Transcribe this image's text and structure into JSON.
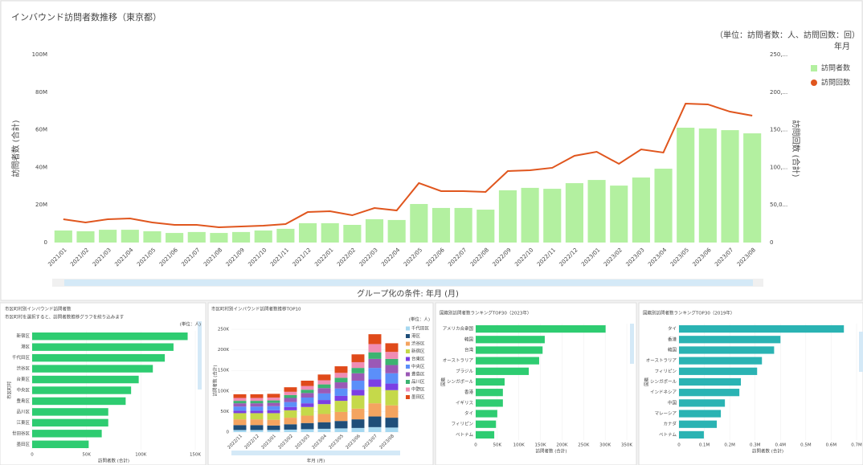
{
  "chart_data": [
    {
      "type": "combo",
      "title": "インバウンド訪問者数推移（東京都）",
      "unit_note": "（単位：訪問者数：人、訪問回数：回）",
      "legend_title": "年月",
      "group_label": "グループ化の条件: 年月 (月)",
      "ylabel": "訪問者数 (合計)",
      "y2label": "訪問回数 (合計)",
      "categories": [
        "2021/01",
        "2021/02",
        "2021/03",
        "2021/04",
        "2021/05",
        "2021/06",
        "2021/07",
        "2021/08",
        "2021/09",
        "2021/10",
        "2021/11",
        "2021/12",
        "2022/01",
        "2022/02",
        "2022/03",
        "2022/04",
        "2022/05",
        "2022/06",
        "2022/07",
        "2022/08",
        "2022/09",
        "2022/10",
        "2022/11",
        "2022/12",
        "2023/01",
        "2023/02",
        "2023/03",
        "2023/04",
        "2023/05",
        "2023/06",
        "2023/07",
        "2023/08"
      ],
      "series": [
        {
          "name": "訪問者数",
          "color": "#b3f0a0",
          "values": [
            6400000,
            6000000,
            6800000,
            6800000,
            6000000,
            5100000,
            5600000,
            5100000,
            5600000,
            6400000,
            7300000,
            10300000,
            10300000,
            9400000,
            12400000,
            12000000,
            20500000,
            18400000,
            18400000,
            17500000,
            27800000,
            29100000,
            28600000,
            31600000,
            33300000,
            30300000,
            34600000,
            39300000,
            61100000,
            60700000,
            59800000,
            58100000
          ]
        },
        {
          "name": "訪問回数",
          "color": "#e0561e",
          "axis": "y2",
          "values": [
            31000,
            26700,
            31000,
            32000,
            26700,
            23500,
            23500,
            20300,
            21400,
            22400,
            24600,
            40600,
            41700,
            36300,
            45900,
            42700,
            79100,
            68400,
            68400,
            67300,
            95100,
            96200,
            99400,
            115400,
            120700,
            104700,
            123900,
            119700,
            184800,
            183800,
            174100,
            168800
          ]
        }
      ],
      "ylim": [
        0,
        100000000
      ],
      "yticks": [
        0,
        {
          "value": 20000000,
          "label": "20M"
        },
        {
          "value": 40000000,
          "label": "40M"
        },
        {
          "value": 60000000,
          "label": "60M"
        },
        {
          "value": 80000000,
          "label": "80M"
        },
        {
          "value": 100000000,
          "label": "100M"
        }
      ],
      "y2lim": [
        0,
        250000
      ],
      "y2ticks": [
        0,
        {
          "value": 50000,
          "label": "50,0..."
        },
        {
          "value": 100000,
          "label": "100,..."
        },
        {
          "value": 150000,
          "label": "150,..."
        },
        {
          "value": 200000,
          "label": "200,..."
        },
        {
          "value": 250000,
          "label": "250,..."
        }
      ],
      "grid": false
    },
    {
      "type": "hbar",
      "title": "市区町村別インバウンド訪問者数",
      "subtitle": "市区町村を選択すると、訪問者数推移グラフを絞り込みます",
      "unit_note": "(単位：人)",
      "xlabel": "訪問者数 (合計)",
      "ylabel": "市区町村",
      "color": "#2ecc71",
      "categories": [
        "新宿区",
        "港区",
        "千代田区",
        "渋谷区",
        "台東区",
        "中央区",
        "豊島区",
        "品川区",
        "江東区",
        "世田谷区",
        "墨田区"
      ],
      "values": [
        143000,
        130000,
        122000,
        111000,
        98000,
        91000,
        86000,
        70000,
        70000,
        64000,
        52000
      ],
      "xlim": [
        0,
        150000
      ],
      "xticks": [
        0,
        {
          "value": 50000,
          "label": "50K"
        },
        {
          "value": 100000,
          "label": "100K"
        },
        {
          "value": 150000,
          "label": "150K"
        }
      ]
    },
    {
      "type": "stacked_bar",
      "title": "市区町村別インバウンド訪問者数推移TOP10",
      "unit_note": "(単位：人)",
      "xlabel": "年月 (月)",
      "ylabel": "訪問者数 (合計)",
      "categories": [
        "2022/11",
        "2022/12",
        "2023/01",
        "2023/02",
        "2023/03",
        "2023/04",
        "2023/05",
        "2023/06",
        "2023/07",
        "2023/08"
      ],
      "series": [
        {
          "name": "千代田区",
          "color": "#a6d8f0",
          "values": [
            5000,
            5000,
            5000,
            6000,
            7000,
            8000,
            9000,
            10000,
            12000,
            11000
          ]
        },
        {
          "name": "港区",
          "color": "#1f4e79",
          "values": [
            12000,
            12000,
            11000,
            13000,
            15000,
            16000,
            18000,
            21000,
            26000,
            24000
          ]
        },
        {
          "name": "渋谷区",
          "color": "#f4a460",
          "values": [
            14000,
            14000,
            14000,
            16000,
            18000,
            20000,
            22000,
            26000,
            32000,
            30000
          ]
        },
        {
          "name": "新宿区",
          "color": "#c5d94a",
          "values": [
            15000,
            15000,
            16000,
            18000,
            21000,
            24000,
            27000,
            32000,
            40000,
            37000
          ]
        },
        {
          "name": "台東区",
          "color": "#7b3fe4",
          "values": [
            6000,
            6000,
            7000,
            8000,
            9000,
            10000,
            12000,
            14000,
            18000,
            16000
          ]
        },
        {
          "name": "中央区",
          "color": "#5b8ff9",
          "values": [
            10000,
            10000,
            10000,
            12000,
            14000,
            16000,
            18000,
            22000,
            28000,
            25000
          ]
        },
        {
          "name": "豊島区",
          "color": "#9b59b6",
          "values": [
            8000,
            8000,
            8000,
            10000,
            11000,
            13000,
            15000,
            18000,
            22000,
            20000
          ]
        },
        {
          "name": "品川区",
          "color": "#3cb371",
          "values": [
            6000,
            6000,
            6000,
            7000,
            8000,
            9000,
            11000,
            13000,
            16000,
            15000
          ]
        },
        {
          "name": "中野区",
          "color": "#f08cb4",
          "values": [
            7000,
            7000,
            7000,
            8000,
            9000,
            10000,
            12000,
            14000,
            20000,
            17000
          ]
        },
        {
          "name": "墨田区",
          "color": "#e04a1a",
          "values": [
            9000,
            9000,
            9000,
            11000,
            13000,
            14000,
            16000,
            19000,
            24000,
            21000
          ]
        }
      ],
      "ylim": [
        0,
        250000
      ],
      "yticks": [
        0,
        {
          "value": 50000,
          "label": "50K"
        },
        {
          "value": 100000,
          "label": "100K"
        },
        {
          "value": 150000,
          "label": "150K"
        },
        {
          "value": 200000,
          "label": "200K"
        },
        {
          "value": 250000,
          "label": "250K"
        }
      ]
    },
    {
      "type": "hbar",
      "title": "国籍別訪問者数ランキングTOP30（2023年）",
      "xlabel": "訪問者数 (合計)",
      "ylabel": "国籍",
      "color": "#2ecc71",
      "categories": [
        "アメリカ合衆国",
        "韓国",
        "台湾",
        "オーストラリア",
        "ブラジル",
        "シンガポール",
        "香港",
        "イギリス",
        "タイ",
        "フィリピン",
        "ベトナム"
      ],
      "values": [
        301000,
        160000,
        155000,
        147000,
        123000,
        67000,
        63000,
        63000,
        50000,
        47000,
        43000
      ],
      "xlim": [
        0,
        350000
      ],
      "xticks": [
        0,
        {
          "value": 50000,
          "label": "50K"
        },
        {
          "value": 100000,
          "label": "100K"
        },
        {
          "value": 150000,
          "label": "150K"
        },
        {
          "value": 200000,
          "label": "200K"
        },
        {
          "value": 250000,
          "label": "250K"
        },
        {
          "value": 300000,
          "label": "300K"
        },
        {
          "value": 350000,
          "label": "350K"
        }
      ]
    },
    {
      "type": "hbar",
      "title": "国籍別訪問者数ランキングTOP30（2019年）",
      "xlabel": "訪問者数 (合計)",
      "ylabel": "国籍",
      "color": "#2ab3b3",
      "categories": [
        "タイ",
        "香港",
        "韓国",
        "オーストラリア",
        "フィリピン",
        "シンガポール",
        "インドネシア",
        "中国",
        "マレーシア",
        "カナダ",
        "ベトナム"
      ],
      "values": [
        650000,
        400000,
        375000,
        327000,
        308000,
        244000,
        238000,
        181000,
        165000,
        149000,
        98000
      ],
      "xlim": [
        0,
        700000
      ],
      "xticks": [
        0,
        {
          "value": 100000,
          "label": "0.1M"
        },
        {
          "value": 200000,
          "label": "0.2M"
        },
        {
          "value": 300000,
          "label": "0.3M"
        },
        {
          "value": 400000,
          "label": "0.4M"
        },
        {
          "value": 500000,
          "label": "0.5M"
        },
        {
          "value": 600000,
          "label": "0.6M"
        },
        {
          "value": 700000,
          "label": "0.7M"
        }
      ]
    }
  ]
}
